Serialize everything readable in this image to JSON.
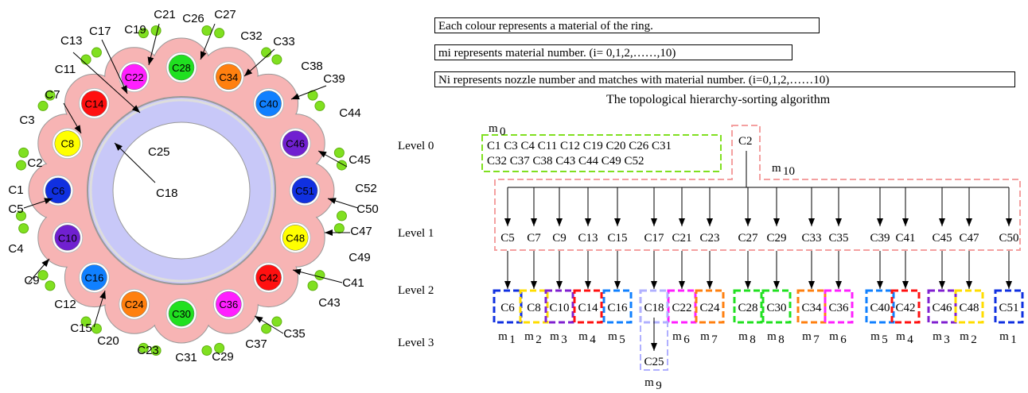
{
  "legend": {
    "line1": "Each colour represents a material of the ring.",
    "line2": "mi represents material number. (i= 0,1,2,……,10)",
    "line3": "Ni represents nozzle number and matches with material number. (i=0,1,2,……10)"
  },
  "algorithm_caption": "The topological hierarchy-sorting algorithm",
  "levels": [
    "Level 0",
    "Level 1",
    "Level 2",
    "Level 3"
  ],
  "ring": {
    "inner_label": "C25",
    "ring_label": "C18",
    "band_label": "C13",
    "band_label2": "C17",
    "circles": [
      {
        "id": "C6",
        "color": "#1030e0"
      },
      {
        "id": "C8",
        "color": "#ffff00"
      },
      {
        "id": "C14",
        "color": "#ff1010"
      },
      {
        "id": "C22",
        "color": "#ff20ff"
      },
      {
        "id": "C28",
        "color": "#20e020"
      },
      {
        "id": "C34",
        "color": "#ff8010"
      },
      {
        "id": "C40",
        "color": "#1080ff"
      },
      {
        "id": "C46",
        "color": "#7020d0"
      },
      {
        "id": "C51",
        "color": "#1030e0"
      },
      {
        "id": "C48",
        "color": "#ffff00"
      },
      {
        "id": "C42",
        "color": "#ff1010"
      },
      {
        "id": "C36",
        "color": "#ff20ff"
      },
      {
        "id": "C30",
        "color": "#20e020"
      },
      {
        "id": "C24",
        "color": "#ff8010"
      },
      {
        "id": "C16",
        "color": "#1080ff"
      },
      {
        "id": "C10",
        "color": "#7020d0"
      }
    ],
    "outer_labels": [
      "C21",
      "C26",
      "C27",
      "C19",
      "C32",
      "C33",
      "C11",
      "C38",
      "C39",
      "C7",
      "C44",
      "C3",
      "C45",
      "C2",
      "C52",
      "C1",
      "C50",
      "C5",
      "C47",
      "C4",
      "C49",
      "C9",
      "C41",
      "C12",
      "C43",
      "C15",
      "C35",
      "C20",
      "C37",
      "C23",
      "C31",
      "C29"
    ]
  },
  "level0": {
    "group_label": "m",
    "group_sub": "0",
    "line1": "C1 C3 C4 C11 C12 C19 C20 C26 C31",
    "line2": "C32 C37 C38 C43 C44 C49 C52",
    "root": "C2",
    "root_label": "m",
    "root_sub": "10"
  },
  "level1": [
    "C5",
    "C7",
    "C9",
    "C13",
    "C15",
    "C17",
    "C21",
    "C23",
    "C27",
    "C29",
    "C33",
    "C35",
    "C39",
    "C41",
    "C45",
    "C47",
    "C50"
  ],
  "level2": [
    {
      "id": "C6",
      "color": "#1030e0",
      "m": "m",
      "sub": "1"
    },
    {
      "id": "C8",
      "color": "#ffdd00",
      "m": "m",
      "sub": "2"
    },
    {
      "id": "C10",
      "color": "#8020d0",
      "m": "m",
      "sub": "3"
    },
    {
      "id": "C14",
      "color": "#ff1010",
      "m": "m",
      "sub": "4"
    },
    {
      "id": "C16",
      "color": "#1080ff",
      "m": "m",
      "sub": "5"
    },
    {
      "id": "C18",
      "color": "#b0b0ff",
      "m": "",
      "sub": ""
    },
    {
      "id": "C22",
      "color": "#ff20ff",
      "m": "m",
      "sub": "6"
    },
    {
      "id": "C24",
      "color": "#ff8010",
      "m": "m",
      "sub": "7"
    },
    {
      "id": "C28",
      "color": "#20e020",
      "m": "m",
      "sub": "8"
    },
    {
      "id": "C30",
      "color": "#20e020",
      "m": "m",
      "sub": "8"
    },
    {
      "id": "C34",
      "color": "#ff8010",
      "m": "m",
      "sub": "7"
    },
    {
      "id": "C36",
      "color": "#ff20ff",
      "m": "m",
      "sub": "6"
    },
    {
      "id": "C40",
      "color": "#1080ff",
      "m": "m",
      "sub": "5"
    },
    {
      "id": "C42",
      "color": "#ff1010",
      "m": "m",
      "sub": "4"
    },
    {
      "id": "C46",
      "color": "#8020d0",
      "m": "m",
      "sub": "3"
    },
    {
      "id": "C48",
      "color": "#ffdd00",
      "m": "m",
      "sub": "2"
    },
    {
      "id": "C51",
      "color": "#1030e0",
      "m": "m",
      "sub": "1"
    }
  ],
  "level3": {
    "id": "C25",
    "m": "m",
    "sub": "9"
  }
}
